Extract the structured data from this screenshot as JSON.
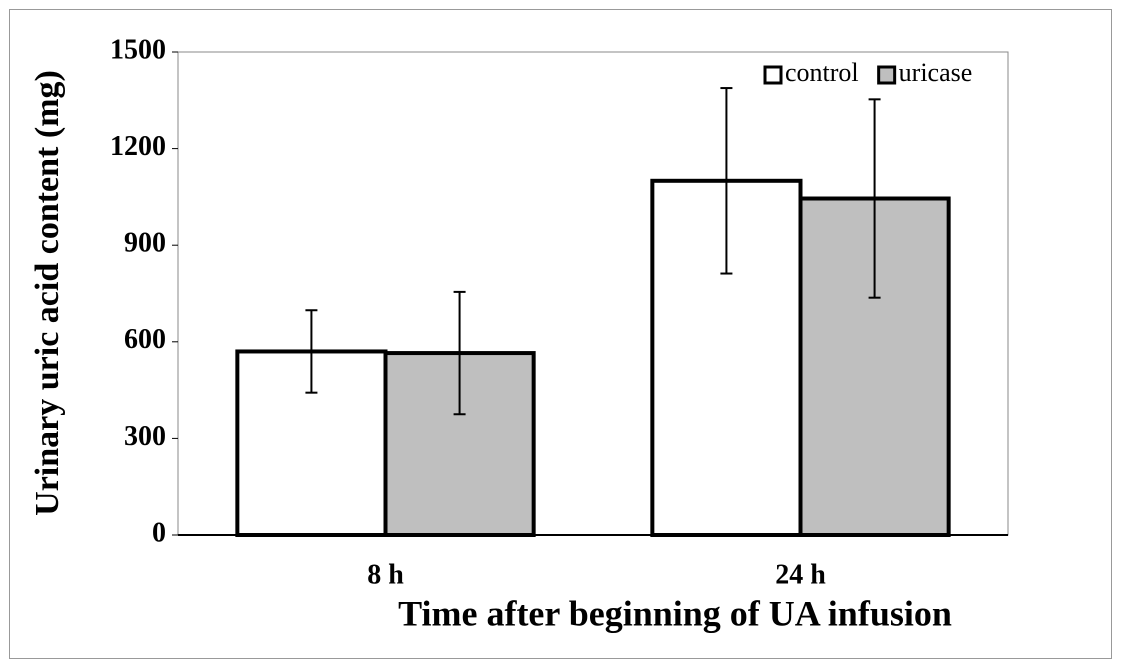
{
  "chart_data": {
    "type": "bar",
    "x_label": "Time after beginning of UA infusion",
    "y_label": "Urinary uric acid content (mg)",
    "categories": [
      "8 h",
      "24 h"
    ],
    "series": [
      {
        "name": "control",
        "color": "#ffffff",
        "values": [
          570,
          1100
        ],
        "errors": [
          128,
          288
        ]
      },
      {
        "name": "uricase",
        "color": "#bfbfbf",
        "values": [
          565,
          1045
        ],
        "errors": [
          190,
          308
        ]
      }
    ],
    "ylim": [
      0,
      1500
    ],
    "yticks": [
      0,
      300,
      600,
      900,
      1200,
      1500
    ],
    "legend": "top-right"
  }
}
